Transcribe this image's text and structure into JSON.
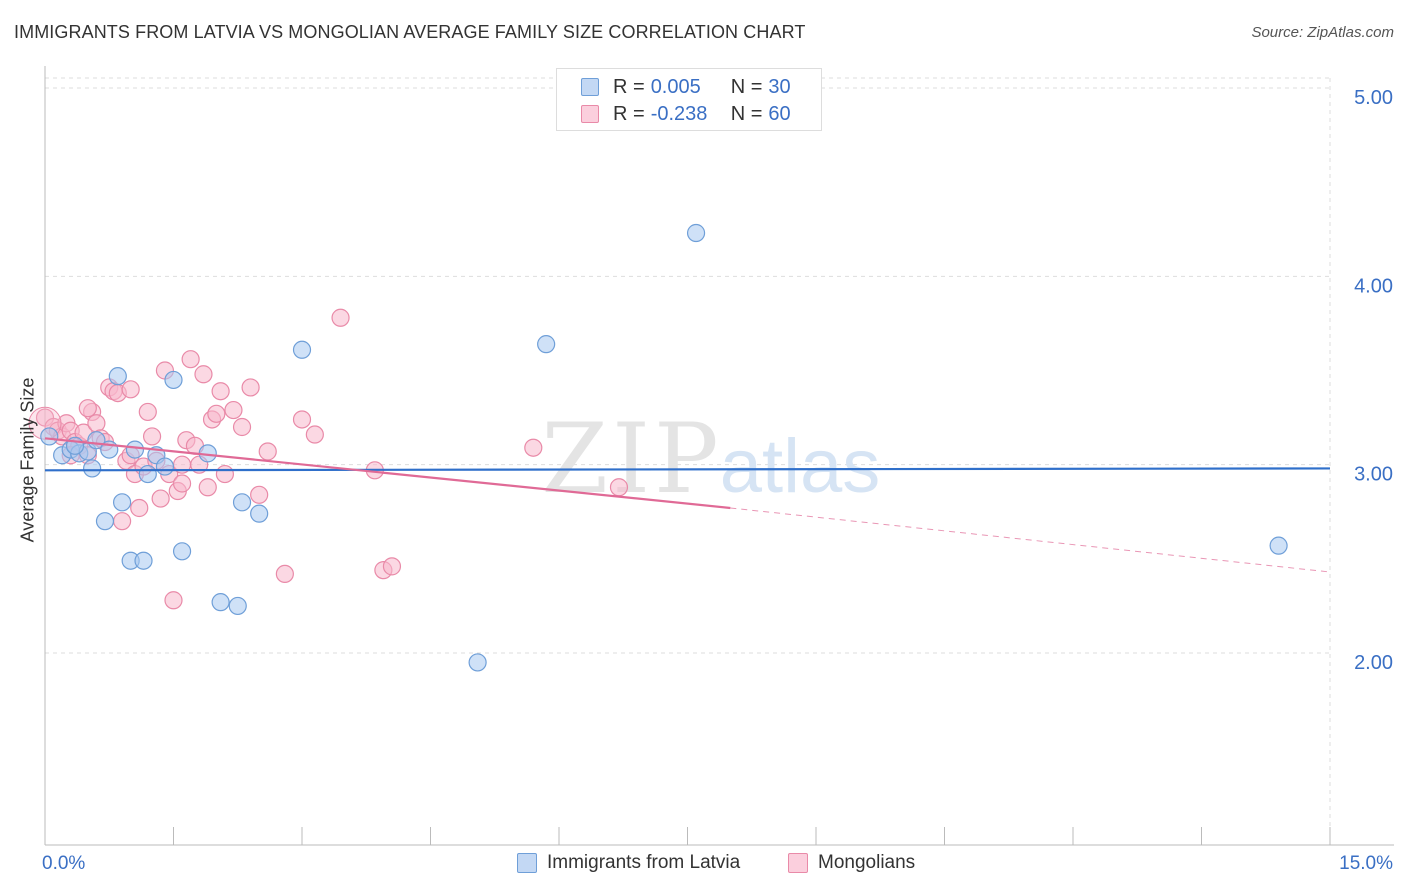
{
  "header": {
    "title": "IMMIGRANTS FROM LATVIA VS MONGOLIAN AVERAGE FAMILY SIZE CORRELATION CHART",
    "source": "Source: ZipAtlas.com"
  },
  "watermark": {
    "zip": "ZIP",
    "atlas": "atlas"
  },
  "legend": {
    "rows": [
      {
        "r_label": "R =",
        "r_value": "0.005",
        "n_label": "N =",
        "n_value": "30"
      },
      {
        "r_label": "R =",
        "r_value": "-0.238",
        "n_label": "N =",
        "n_value": "60"
      }
    ]
  },
  "colors": {
    "latvia_fill": "#a8c8f0",
    "latvia_stroke": "#6f9fd8",
    "latvia_line": "#2f6fca",
    "mongolia_fill": "#f7b8cc",
    "mongolia_stroke": "#e98aa8",
    "mongolia_line": "#e06a96",
    "axis_text": "#3a6fc4",
    "grid": "#dddddd"
  },
  "chart_data": {
    "type": "scatter",
    "title": "IMMIGRANTS FROM LATVIA VS MONGOLIAN AVERAGE FAMILY SIZE CORRELATION CHART",
    "xlabel": "",
    "ylabel": "Average Family Size",
    "xlim": [
      0,
      15
    ],
    "ylim": [
      1.0,
      5.1
    ],
    "x_tick_labels": [
      "0.0%",
      "15.0%"
    ],
    "y_ticks": [
      2.0,
      3.0,
      4.0,
      5.0
    ],
    "y_tick_labels": [
      "2.00",
      "3.00",
      "4.00",
      "5.00"
    ],
    "grid": "horizontal dashed",
    "legend_position": "top-center",
    "series": [
      {
        "name": "Immigrants from Latvia",
        "points": [
          [
            0.05,
            3.15
          ],
          [
            0.2,
            3.05
          ],
          [
            0.3,
            3.08
          ],
          [
            0.4,
            3.06
          ],
          [
            0.5,
            3.07
          ],
          [
            0.55,
            2.98
          ],
          [
            0.6,
            3.13
          ],
          [
            0.7,
            2.7
          ],
          [
            0.75,
            3.08
          ],
          [
            0.85,
            3.47
          ],
          [
            0.9,
            2.8
          ],
          [
            1.0,
            2.49
          ],
          [
            1.05,
            3.08
          ],
          [
            1.15,
            2.49
          ],
          [
            1.3,
            3.05
          ],
          [
            1.4,
            2.99
          ],
          [
            1.5,
            3.45
          ],
          [
            1.6,
            2.54
          ],
          [
            1.9,
            3.06
          ],
          [
            2.05,
            2.27
          ],
          [
            2.25,
            2.25
          ],
          [
            2.3,
            2.8
          ],
          [
            2.5,
            2.74
          ],
          [
            3.0,
            3.61
          ],
          [
            5.05,
            1.95
          ],
          [
            5.85,
            3.64
          ],
          [
            7.6,
            4.23
          ],
          [
            14.4,
            2.57
          ],
          [
            0.35,
            3.1
          ],
          [
            1.2,
            2.95
          ]
        ],
        "trend": {
          "x_start": 0,
          "y_start": 2.97,
          "x_end": 15,
          "y_end": 2.98
        }
      },
      {
        "name": "Mongolians",
        "points": [
          [
            0.0,
            3.25
          ],
          [
            0.1,
            3.2
          ],
          [
            0.15,
            3.18
          ],
          [
            0.2,
            3.15
          ],
          [
            0.25,
            3.22
          ],
          [
            0.3,
            3.18
          ],
          [
            0.35,
            3.12
          ],
          [
            0.4,
            3.1
          ],
          [
            0.45,
            3.17
          ],
          [
            0.5,
            3.05
          ],
          [
            0.55,
            3.28
          ],
          [
            0.6,
            3.22
          ],
          [
            0.65,
            3.14
          ],
          [
            0.7,
            3.12
          ],
          [
            0.75,
            3.41
          ],
          [
            0.8,
            3.39
          ],
          [
            0.85,
            3.38
          ],
          [
            0.9,
            2.7
          ],
          [
            0.95,
            3.02
          ],
          [
            1.0,
            3.05
          ],
          [
            1.05,
            2.95
          ],
          [
            1.1,
            2.77
          ],
          [
            1.15,
            2.99
          ],
          [
            1.2,
            3.28
          ],
          [
            1.25,
            3.15
          ],
          [
            1.3,
            3.02
          ],
          [
            1.35,
            2.82
          ],
          [
            1.4,
            3.5
          ],
          [
            1.45,
            2.95
          ],
          [
            1.5,
            2.28
          ],
          [
            1.55,
            2.86
          ],
          [
            1.6,
            2.9
          ],
          [
            1.65,
            3.13
          ],
          [
            1.7,
            3.56
          ],
          [
            1.75,
            3.1
          ],
          [
            1.8,
            3.0
          ],
          [
            1.85,
            3.48
          ],
          [
            1.9,
            2.88
          ],
          [
            1.95,
            3.24
          ],
          [
            2.0,
            3.27
          ],
          [
            2.05,
            3.39
          ],
          [
            2.1,
            2.95
          ],
          [
            2.2,
            3.29
          ],
          [
            2.3,
            3.2
          ],
          [
            2.4,
            3.41
          ],
          [
            2.5,
            2.84
          ],
          [
            2.6,
            3.07
          ],
          [
            2.8,
            2.42
          ],
          [
            3.0,
            3.24
          ],
          [
            3.15,
            3.16
          ],
          [
            3.45,
            3.78
          ],
          [
            3.85,
            2.97
          ],
          [
            3.95,
            2.44
          ],
          [
            4.05,
            2.46
          ],
          [
            5.7,
            3.09
          ],
          [
            6.7,
            2.88
          ],
          [
            0.5,
            3.3
          ],
          [
            1.0,
            3.4
          ],
          [
            1.6,
            3.0
          ],
          [
            0.3,
            3.05
          ]
        ],
        "trend": {
          "x_start": 0,
          "y_start": 3.14,
          "x_end": 8.0,
          "y_end": 2.77,
          "dashed_to_x": 15,
          "dashed_to_y": 2.43
        }
      }
    ]
  },
  "bottom_legend": {
    "items": [
      "Immigrants from Latvia",
      "Mongolians"
    ]
  }
}
